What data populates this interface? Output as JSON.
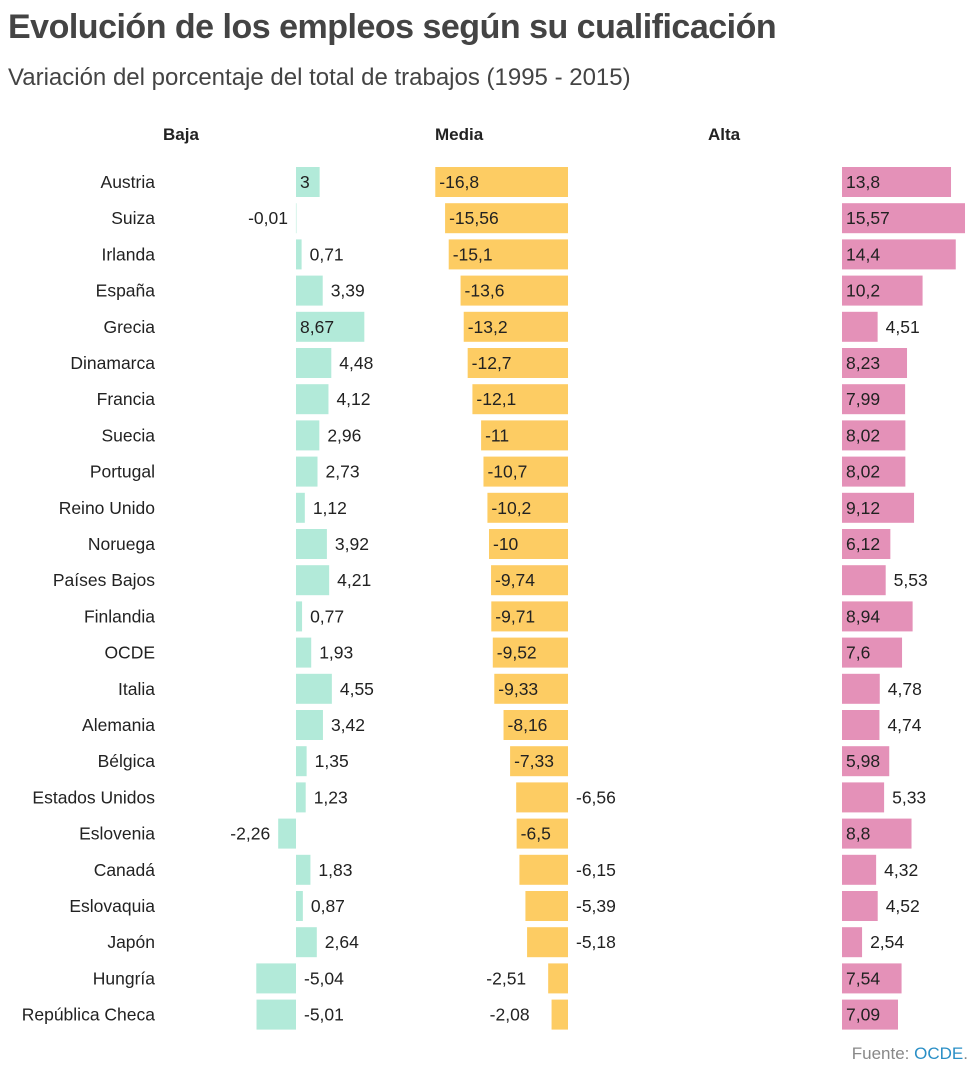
{
  "title": "Evolución de los empleos según su cualificación",
  "subtitle": "Variación del porcentaje del total de trabajos (1995 - 2015)",
  "source": {
    "prefix": "Fuente:",
    "link": "OCDE",
    "suffix": "."
  },
  "colors": {
    "baja": "#b2ead9",
    "media": "#fdcc63",
    "alta": "#e491b8"
  },
  "chart_data": {
    "type": "bar",
    "orientation": "horizontal",
    "title": "Evolución de los empleos según su cualificación",
    "subtitle": "Variación del porcentaje del total de trabajos (1995 - 2015)",
    "categories": [
      "Austria",
      "Suiza",
      "Irlanda",
      "España",
      "Grecia",
      "Dinamarca",
      "Francia",
      "Suecia",
      "Portugal",
      "Reino Unido",
      "Noruega",
      "Países Bajos",
      "Finlandia",
      "OCDE",
      "Italia",
      "Alemania",
      "Bélgica",
      "Estados Unidos",
      "Eslovenia",
      "Canadá",
      "Eslovaquia",
      "Japón",
      "Hungría",
      "República Checa"
    ],
    "series": [
      {
        "name": "Baja",
        "labels": [
          "3",
          "-0,01",
          "0,71",
          "3,39",
          "8,67",
          "4,48",
          "4,12",
          "2,96",
          "2,73",
          "1,12",
          "3,92",
          "4,21",
          "0,77",
          "1,93",
          "4,55",
          "3,42",
          "1,35",
          "1,23",
          "-2,26",
          "1,83",
          "0,87",
          "2,64",
          "-5,04",
          "-5,01"
        ],
        "values": [
          3,
          -0.01,
          0.71,
          3.39,
          8.67,
          4.48,
          4.12,
          2.96,
          2.73,
          1.12,
          3.92,
          4.21,
          0.77,
          1.93,
          4.55,
          3.42,
          1.35,
          1.23,
          -2.26,
          1.83,
          0.87,
          2.64,
          -5.04,
          -5.01
        ]
      },
      {
        "name": "Media",
        "labels": [
          "-16,8",
          "-15,56",
          "-15,1",
          "-13,6",
          "-13,2",
          "-12,7",
          "-12,1",
          "-11",
          "-10,7",
          "-10,2",
          "-10",
          "-9,74",
          "-9,71",
          "-9,52",
          "-9,33",
          "-8,16",
          "-7,33",
          "-6,56",
          "-6,5",
          "-6,15",
          "-5,39",
          "-5,18",
          "-2,51",
          "-2,08"
        ],
        "values": [
          -16.8,
          -15.56,
          -15.1,
          -13.6,
          -13.2,
          -12.7,
          -12.1,
          -11,
          -10.7,
          -10.2,
          -10,
          -9.74,
          -9.71,
          -9.52,
          -9.33,
          -8.16,
          -7.33,
          -6.56,
          -6.5,
          -6.15,
          -5.39,
          -5.18,
          -2.51,
          -2.08
        ]
      },
      {
        "name": "Alta",
        "labels": [
          "13,8",
          "15,57",
          "14,4",
          "10,2",
          "4,51",
          "8,23",
          "7,99",
          "8,02",
          "8,02",
          "9,12",
          "6,12",
          "5,53",
          "8,94",
          "7,6",
          "4,78",
          "4,74",
          "5,98",
          "5,33",
          "8,8",
          "4,32",
          "4,52",
          "2,54",
          "7,54",
          "7,09"
        ],
        "values": [
          13.8,
          15.57,
          14.4,
          10.2,
          4.51,
          8.23,
          7.99,
          8.02,
          8.02,
          9.12,
          6.12,
          5.53,
          8.94,
          7.6,
          4.78,
          4.74,
          5.98,
          5.33,
          8.8,
          4.32,
          4.52,
          2.54,
          7.54,
          7.09
        ]
      }
    ],
    "xlabel": "",
    "ylabel": "",
    "grid": false,
    "legend": "none"
  }
}
